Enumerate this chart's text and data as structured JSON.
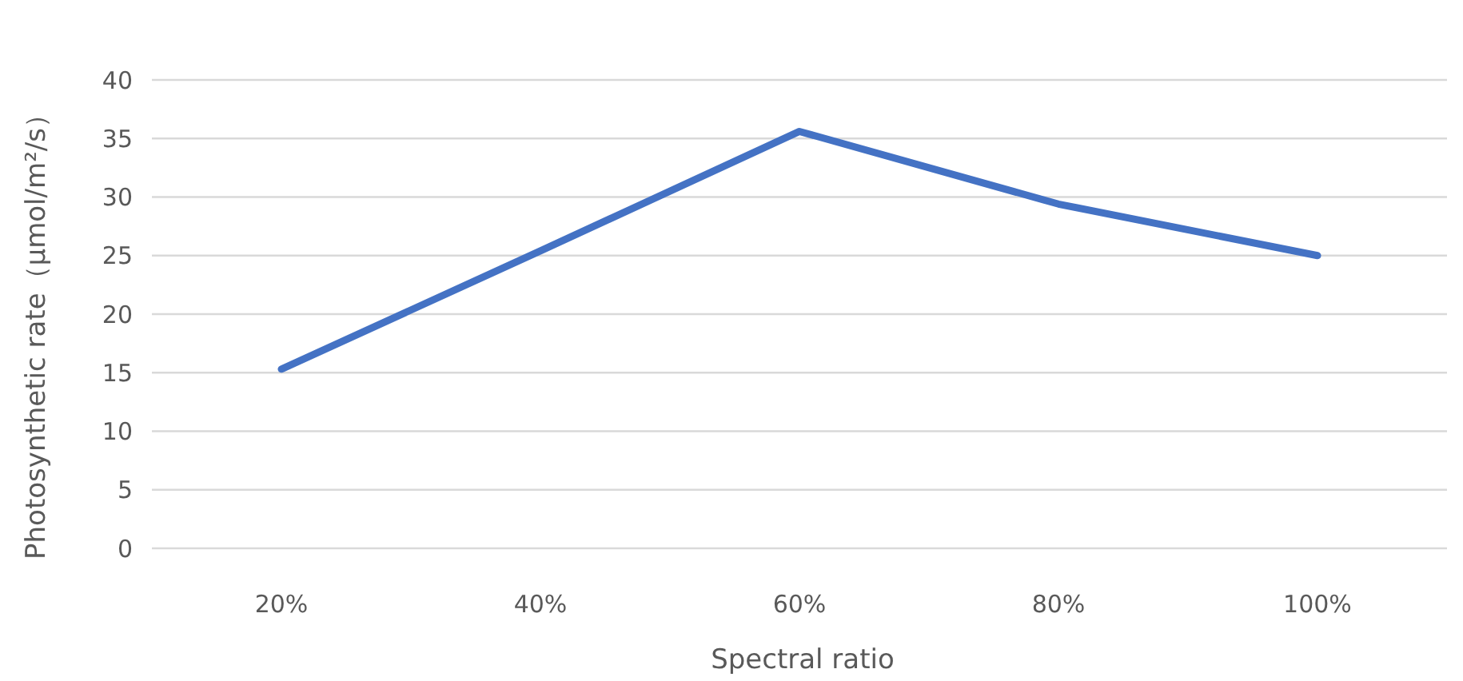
{
  "chart_data": {
    "type": "line",
    "xlabel": "Spectral ratio",
    "ylabel": "Photosynthetic rate（μmol/m²/s）",
    "categories": [
      "20%",
      "40%",
      "60%",
      "80%",
      "100%"
    ],
    "series": [
      {
        "color": "#4472c4",
        "values": [
          15.3,
          25.4,
          35.6,
          29.4,
          25.0
        ]
      }
    ],
    "ylim": [
      0,
      40
    ],
    "yticks": [
      0,
      5,
      10,
      15,
      20,
      25,
      30,
      35,
      40
    ],
    "grid": "y",
    "marker": "none",
    "line_style": "solid"
  }
}
